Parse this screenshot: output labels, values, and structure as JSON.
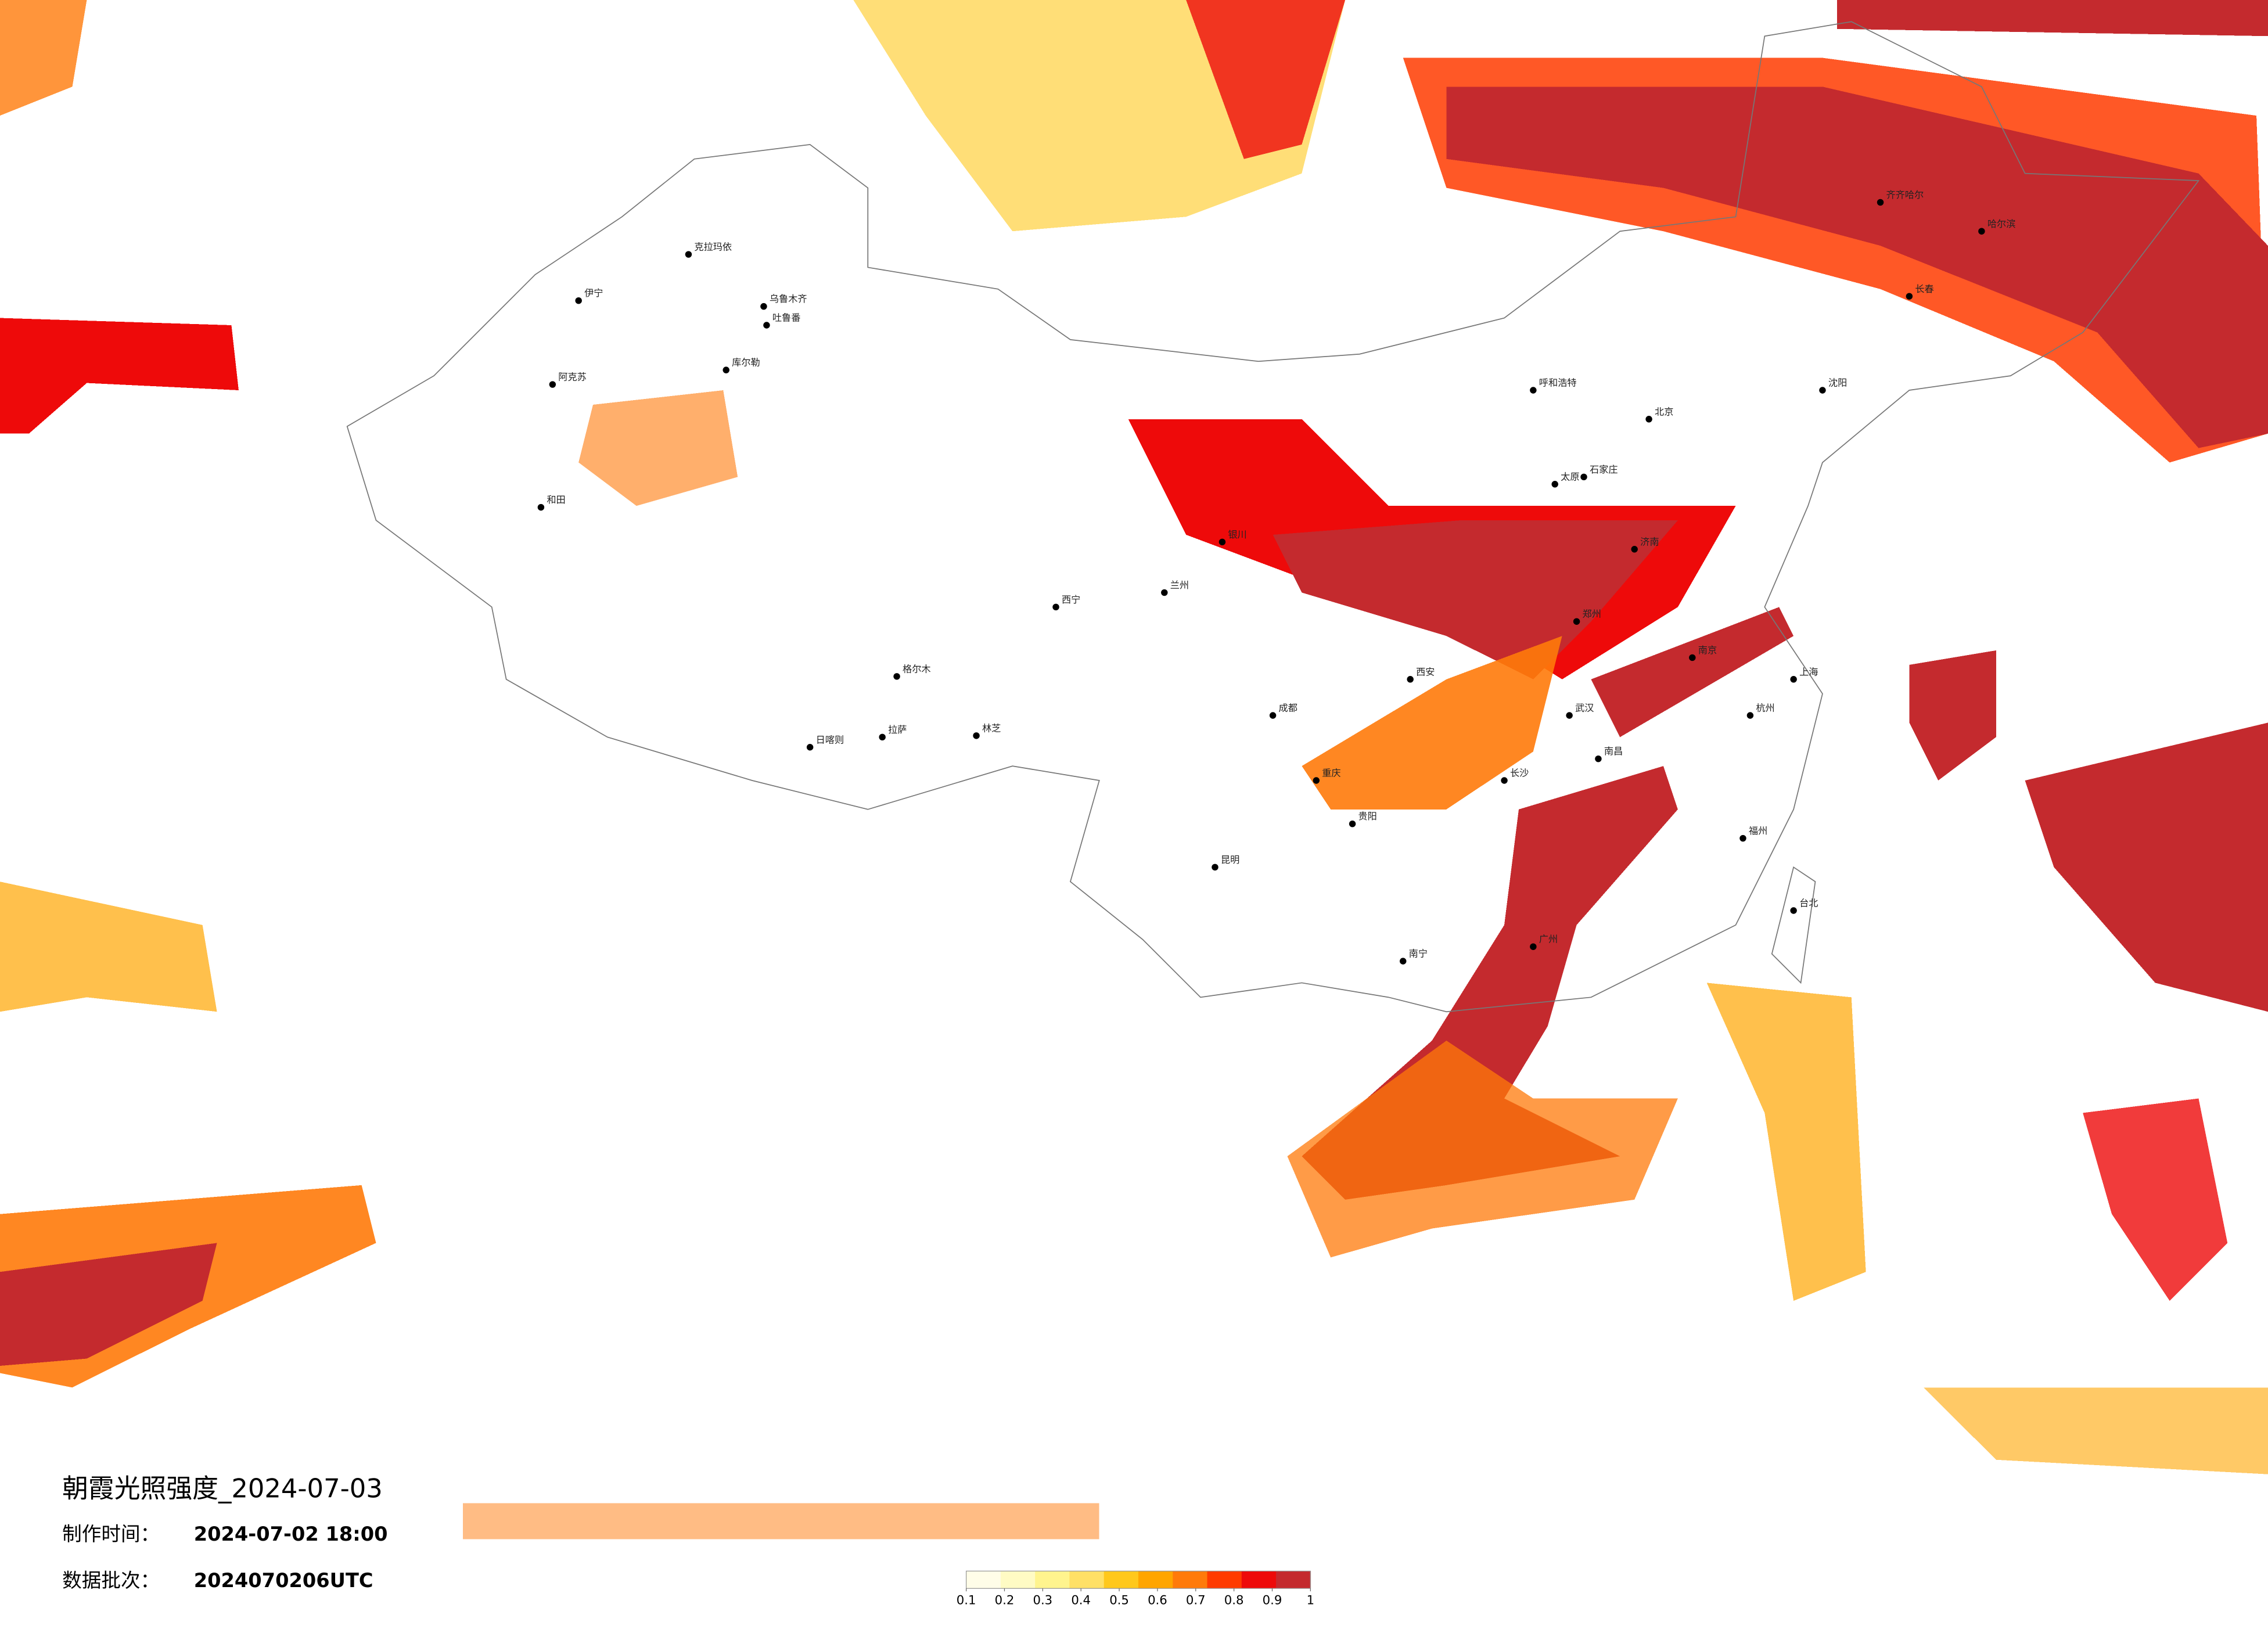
{
  "title": "朝霞光照强度_2024-07-03",
  "made_label": "制作时间：",
  "made_time": "2024-07-02 18:00",
  "batch_label": "数据批次：",
  "batch": "2024070206UTC",
  "legend": {
    "ticks": [
      0.1,
      0.2,
      0.3,
      0.4,
      0.5,
      0.6,
      0.7,
      0.8,
      0.9,
      1
    ],
    "colors": [
      "#fffde8",
      "#fffbc4",
      "#fff48e",
      "#ffe066",
      "#ffc81c",
      "#ffa500",
      "#ff7a0a",
      "#ff3b00",
      "#ee0a0a",
      "#c42a2e"
    ]
  },
  "cities": [
    "克拉玛依",
    "乌鲁木齐",
    "伊宁",
    "阿克苏",
    "库尔勒",
    "和田",
    "吐鲁番",
    "格尔木",
    "拉萨",
    "日喀则",
    "林芝",
    "西宁",
    "兰州",
    "银川",
    "呼和浩特",
    "北京",
    "太原",
    "石家庄",
    "郑州",
    "西安",
    "成都",
    "重庆",
    "贵阳",
    "昆明",
    "南宁",
    "广州",
    "长沙",
    "武汉",
    "南昌",
    "南京",
    "上海",
    "杭州",
    "福州",
    "济南",
    "沈阳",
    "长春",
    "哈尔滨",
    "齐齐哈尔",
    "台北"
  ]
}
